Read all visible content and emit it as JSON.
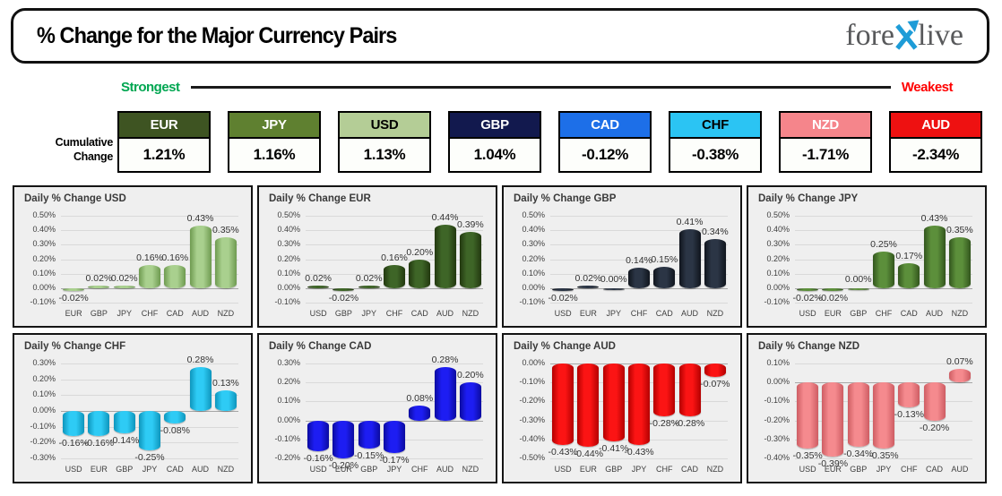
{
  "header": {
    "title": "% Change for the Major Currency Pairs",
    "logo": {
      "part1": "fore",
      "part2": "live",
      "x_color": "#1e9cd7",
      "text_color": "#58595b"
    }
  },
  "scale": {
    "strongest": "Strongest",
    "weakest": "Weakest",
    "strongest_color": "#00a651",
    "weakest_color": "#ff0000"
  },
  "cumulative": {
    "label_line1": "Cumulative",
    "label_line2": "Change",
    "items": [
      {
        "code": "EUR",
        "value": "1.21%",
        "bg": "#3e5422",
        "fg": "#ffffff"
      },
      {
        "code": "JPY",
        "value": "1.16%",
        "bg": "#5f8030",
        "fg": "#ffffff"
      },
      {
        "code": "USD",
        "value": "1.13%",
        "bg": "#b4cd96",
        "fg": "#000000"
      },
      {
        "code": "GBP",
        "value": "1.04%",
        "bg": "#12194e",
        "fg": "#ffffff"
      },
      {
        "code": "CAD",
        "value": "-0.12%",
        "bg": "#1d6fe8",
        "fg": "#ffffff"
      },
      {
        "code": "CHF",
        "value": "-0.38%",
        "bg": "#2bc4f3",
        "fg": "#000000"
      },
      {
        "code": "NZD",
        "value": "-1.71%",
        "bg": "#f5858b",
        "fg": "#ffffff"
      },
      {
        "code": "AUD",
        "value": "-2.34%",
        "bg": "#ee1111",
        "fg": "#ffffff"
      }
    ]
  },
  "chart_data": [
    {
      "id": "usd",
      "type": "bar",
      "title": "Daily % Change USD",
      "categories": [
        "EUR",
        "GBP",
        "JPY",
        "CHF",
        "CAD",
        "AUD",
        "NZD"
      ],
      "values": [
        -0.02,
        0.02,
        0.02,
        0.16,
        0.16,
        0.43,
        0.35
      ],
      "ylim": [
        -0.1,
        0.5
      ],
      "ystep": 0.1,
      "grid": true,
      "legend": false,
      "bar_color": "#a9d08e",
      "bar_edge": "#6e9a50"
    },
    {
      "id": "eur",
      "type": "bar",
      "title": "Daily % Change EUR",
      "categories": [
        "USD",
        "GBP",
        "JPY",
        "CHF",
        "CAD",
        "AUD",
        "NZD"
      ],
      "values": [
        0.02,
        -0.02,
        0.02,
        0.16,
        0.2,
        0.44,
        0.39
      ],
      "ylim": [
        -0.1,
        0.5
      ],
      "ystep": 0.1,
      "grid": true,
      "legend": false,
      "bar_color": "#3e6527",
      "bar_edge": "#22380f"
    },
    {
      "id": "gbp",
      "type": "bar",
      "title": "Daily % Change GBP",
      "categories": [
        "USD",
        "EUR",
        "JPY",
        "CHF",
        "CAD",
        "AUD",
        "NZD"
      ],
      "values": [
        -0.02,
        0.02,
        0.0,
        0.14,
        0.15,
        0.41,
        0.34
      ],
      "ylim": [
        -0.1,
        0.5
      ],
      "ystep": 0.1,
      "grid": true,
      "legend": false,
      "bar_color": "#2b3545",
      "bar_edge": "#10151d"
    },
    {
      "id": "jpy",
      "type": "bar",
      "title": "Daily % Change JPY",
      "categories": [
        "USD",
        "EUR",
        "GBP",
        "CHF",
        "CAD",
        "AUD",
        "NZD"
      ],
      "values": [
        -0.02,
        -0.02,
        0.0,
        0.25,
        0.17,
        0.43,
        0.35
      ],
      "ylim": [
        -0.1,
        0.5
      ],
      "ystep": 0.1,
      "grid": true,
      "legend": false,
      "bar_color": "#5c8f3b",
      "bar_edge": "#32551d"
    },
    {
      "id": "chf",
      "type": "bar",
      "title": "Daily % Change CHF",
      "categories": [
        "USD",
        "EUR",
        "GBP",
        "JPY",
        "CAD",
        "AUD",
        "NZD"
      ],
      "values": [
        -0.16,
        -0.16,
        -0.14,
        -0.25,
        -0.08,
        0.28,
        0.13
      ],
      "ylim": [
        -0.3,
        0.3
      ],
      "ystep": 0.1,
      "grid": true,
      "legend": false,
      "bar_color": "#2ecbf5",
      "bar_edge": "#0e95bc"
    },
    {
      "id": "cad",
      "type": "bar",
      "title": "Daily % Change CAD",
      "categories": [
        "USD",
        "EUR",
        "GBP",
        "JPY",
        "CHF",
        "AUD",
        "NZD"
      ],
      "values": [
        -0.16,
        -0.2,
        -0.15,
        -0.17,
        0.08,
        0.28,
        0.2
      ],
      "ylim": [
        -0.2,
        0.3
      ],
      "ystep": 0.1,
      "grid": true,
      "legend": false,
      "bar_color": "#1d1df2",
      "bar_edge": "#0b0ba0"
    },
    {
      "id": "aud",
      "type": "bar",
      "title": "Daily % Change AUD",
      "categories": [
        "USD",
        "EUR",
        "GBP",
        "JPY",
        "CHF",
        "CAD",
        "NZD"
      ],
      "values": [
        -0.43,
        -0.44,
        -0.41,
        -0.43,
        -0.28,
        -0.28,
        -0.07
      ],
      "ylim": [
        -0.5,
        0.0
      ],
      "ystep": 0.1,
      "grid": true,
      "legend": false,
      "bar_color": "#fb1414",
      "bar_edge": "#b30000"
    },
    {
      "id": "nzd",
      "type": "bar",
      "title": "Daily % Change NZD",
      "categories": [
        "USD",
        "EUR",
        "GBP",
        "JPY",
        "CHF",
        "CAD",
        "AUD"
      ],
      "values": [
        -0.35,
        -0.39,
        -0.34,
        -0.35,
        -0.13,
        -0.2,
        0.07
      ],
      "ylim": [
        -0.4,
        0.1
      ],
      "ystep": 0.1,
      "grid": true,
      "legend": false,
      "bar_color": "#f58a8e",
      "bar_edge": "#ce5d63"
    }
  ]
}
